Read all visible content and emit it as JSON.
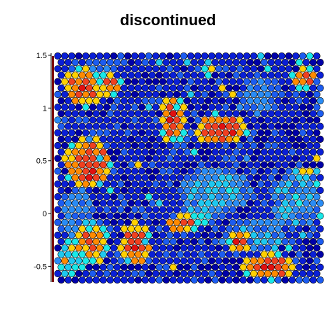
{
  "chart_data": {
    "type": "heatmap",
    "title": "discontinued",
    "xlabel": "",
    "ylabel": "",
    "ylim": [
      -0.65,
      1.52
    ],
    "yticks": [
      -0.5,
      0,
      0.5,
      1,
      1.5
    ],
    "ytick_labels": [
      "-0.5",
      "0",
      "0.5",
      "1",
      "1.5"
    ],
    "grid": false,
    "legend": "none",
    "layout": "hexagonal",
    "grid_cols": 38,
    "grid_rows": 36,
    "colormap": [
      "#0000a8",
      "#0a1fd6",
      "#1c5cf0",
      "#2a8cf5",
      "#1ec8f0",
      "#18e8e8",
      "#ffd000",
      "#ff8a00",
      "#f04020",
      "#e01010"
    ],
    "value_range": [
      0,
      1
    ],
    "hot_regions": [
      {
        "cx": 0.12,
        "cy": 0.48,
        "rx": 0.09,
        "ry": 0.12,
        "v": 0.97
      },
      {
        "cx": 0.1,
        "cy": 0.14,
        "rx": 0.07,
        "ry": 0.09,
        "v": 0.93
      },
      {
        "cx": 0.2,
        "cy": 0.13,
        "rx": 0.05,
        "ry": 0.05,
        "v": 0.85
      },
      {
        "cx": 0.44,
        "cy": 0.28,
        "rx": 0.05,
        "ry": 0.11,
        "v": 0.95
      },
      {
        "cx": 0.62,
        "cy": 0.33,
        "rx": 0.1,
        "ry": 0.07,
        "v": 0.97
      },
      {
        "cx": 0.13,
        "cy": 0.83,
        "rx": 0.07,
        "ry": 0.09,
        "v": 0.82
      },
      {
        "cx": 0.3,
        "cy": 0.84,
        "rx": 0.06,
        "ry": 0.1,
        "v": 0.93
      },
      {
        "cx": 0.47,
        "cy": 0.75,
        "rx": 0.06,
        "ry": 0.04,
        "v": 0.94
      },
      {
        "cx": 0.69,
        "cy": 0.83,
        "rx": 0.04,
        "ry": 0.05,
        "v": 0.9
      },
      {
        "cx": 0.8,
        "cy": 0.94,
        "rx": 0.1,
        "ry": 0.06,
        "v": 0.95
      },
      {
        "cx": 0.93,
        "cy": 0.1,
        "rx": 0.05,
        "ry": 0.05,
        "v": 0.88
      },
      {
        "cx": 0.94,
        "cy": 0.52,
        "rx": 0.04,
        "ry": 0.03,
        "v": 0.7
      },
      {
        "cx": 0.57,
        "cy": 0.06,
        "rx": 0.03,
        "ry": 0.04,
        "v": 0.65
      }
    ],
    "mid_regions": [
      {
        "cx": 0.6,
        "cy": 0.6,
        "rx": 0.14,
        "ry": 0.1,
        "v": 0.45
      },
      {
        "cx": 0.9,
        "cy": 0.65,
        "rx": 0.09,
        "ry": 0.12,
        "v": 0.45
      },
      {
        "cx": 0.75,
        "cy": 0.8,
        "rx": 0.12,
        "ry": 0.08,
        "v": 0.4
      },
      {
        "cx": 0.08,
        "cy": 0.7,
        "rx": 0.06,
        "ry": 0.12,
        "v": 0.4
      },
      {
        "cx": 0.77,
        "cy": 0.18,
        "rx": 0.08,
        "ry": 0.1,
        "v": 0.35
      },
      {
        "cx": 0.15,
        "cy": 0.05,
        "rx": 0.1,
        "ry": 0.04,
        "v": 0.35
      },
      {
        "cx": 0.53,
        "cy": 0.72,
        "rx": 0.05,
        "ry": 0.05,
        "v": 0.6
      },
      {
        "cx": 0.05,
        "cy": 0.9,
        "rx": 0.05,
        "ry": 0.08,
        "v": 0.65
      }
    ]
  }
}
